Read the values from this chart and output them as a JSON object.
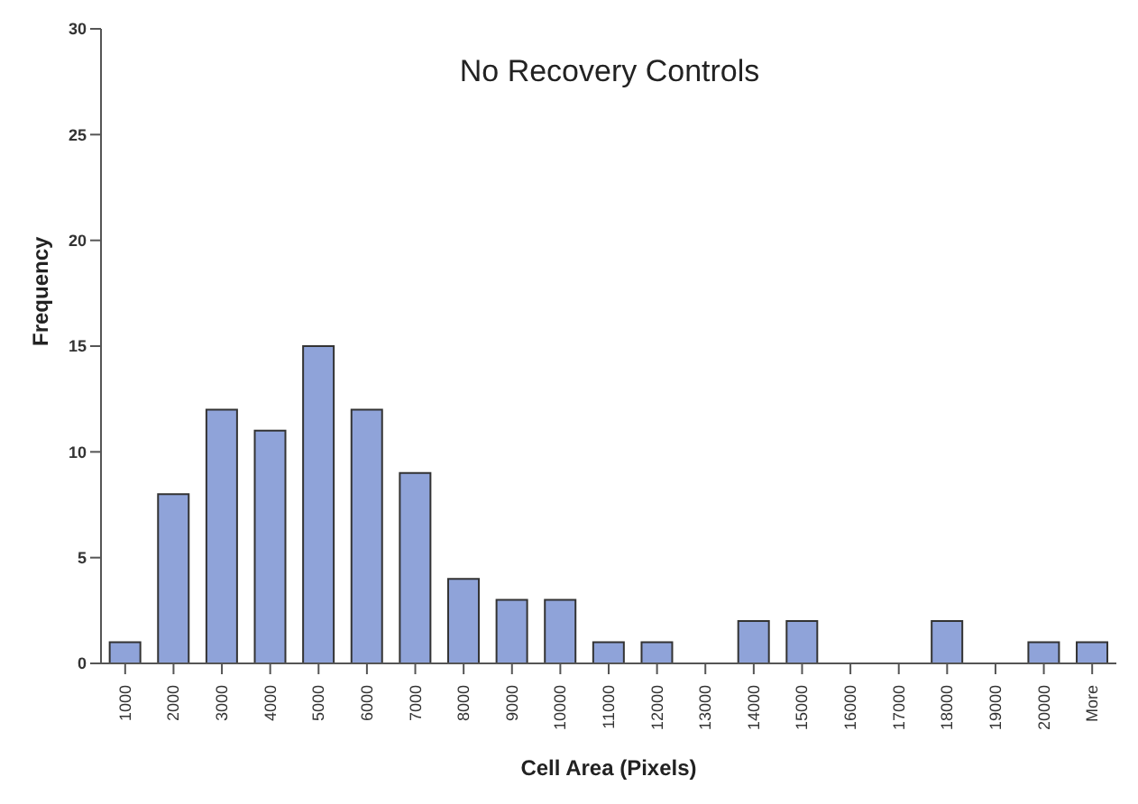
{
  "chart_data": {
    "type": "bar",
    "title": "No Recovery Controls",
    "xlabel": "Cell Area (Pixels)",
    "ylabel": "Frequency",
    "categories": [
      "1000",
      "2000",
      "3000",
      "4000",
      "5000",
      "6000",
      "7000",
      "8000",
      "9000",
      "10000",
      "11000",
      "12000",
      "13000",
      "14000",
      "15000",
      "16000",
      "17000",
      "18000",
      "19000",
      "20000",
      "More"
    ],
    "values": [
      1,
      8,
      12,
      11,
      15,
      12,
      9,
      4,
      3,
      3,
      1,
      1,
      0,
      2,
      2,
      0,
      0,
      2,
      0,
      1,
      1
    ],
    "color": "#8fa3d9",
    "ylim": [
      0,
      30
    ],
    "yticks": [
      0,
      5,
      10,
      15,
      20,
      25,
      30
    ],
    "grid": false,
    "legend": false
  }
}
